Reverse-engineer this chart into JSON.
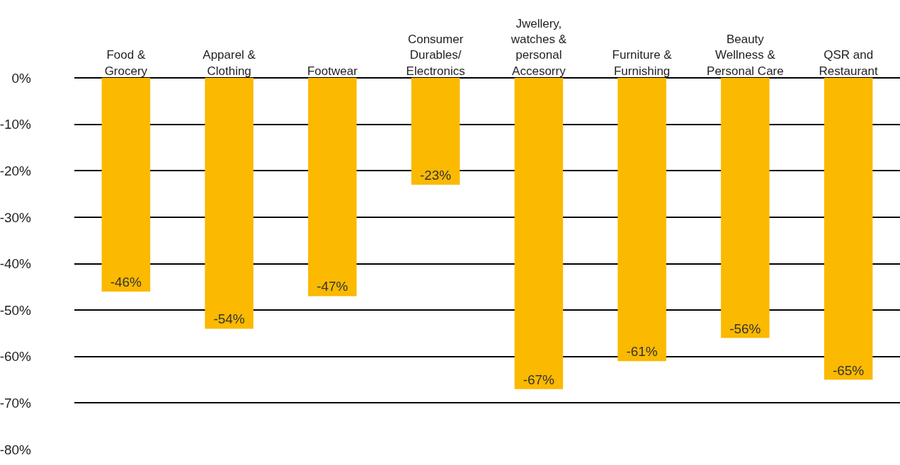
{
  "chart_data": {
    "type": "bar",
    "categories": [
      "Food & Grocery",
      "Apparel & Clothing",
      "Footwear",
      "Consumer Durables/ Electronics",
      "Jwellery, watches & personal Accesorry",
      "Furniture & Furnishing",
      "Beauty Wellness & Personal Care",
      "QSR and Restaurant"
    ],
    "values": [
      -46,
      -54,
      -47,
      -23,
      -67,
      -61,
      -56,
      -65
    ],
    "value_labels": [
      "-46%",
      "-54%",
      "-47%",
      "-23%",
      "-67%",
      "-61%",
      "-56%",
      "-65%"
    ],
    "color": "#fbb900",
    "ylim": [
      -80,
      0
    ],
    "yticks": [
      {
        "value": 0,
        "label": "0%"
      },
      {
        "value": -10,
        "label": "-10%"
      },
      {
        "value": -20,
        "label": "-20%"
      },
      {
        "value": -30,
        "label": "-30%"
      },
      {
        "value": -40,
        "label": "-40%"
      },
      {
        "value": -50,
        "label": "-50%"
      },
      {
        "value": -60,
        "label": "-60%"
      },
      {
        "value": -70,
        "label": "-70%"
      },
      {
        "value": -80,
        "label": "-80%"
      }
    ],
    "grid": "y"
  }
}
